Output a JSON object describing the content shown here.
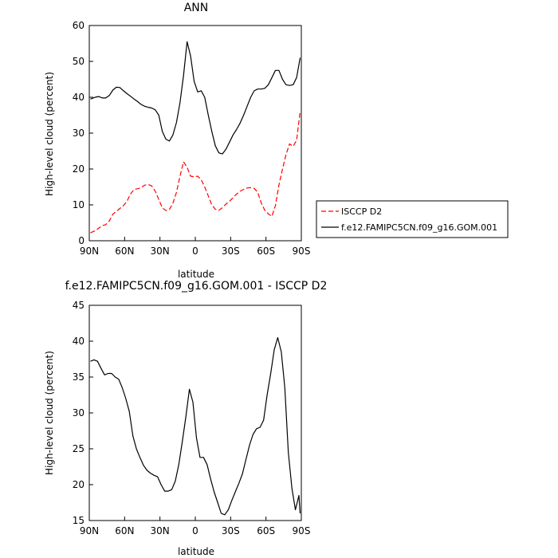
{
  "chart_data": [
    {
      "type": "line",
      "title": "ANN",
      "xlabel": "latitude",
      "ylabel": "High-level cloud (percent)",
      "xlim": [
        90,
        -90
      ],
      "ylim": [
        0,
        60
      ],
      "x_ticks": [
        "90N",
        "60N",
        "30N",
        "0",
        "30S",
        "60S",
        "90S"
      ],
      "y_ticks": [
        "0",
        "10",
        "20",
        "30",
        "40",
        "50",
        "60"
      ],
      "grid": false,
      "legend_position": "right",
      "series": [
        {
          "name": "ISCCP D2",
          "color": "#ff0000",
          "dash": "dashed",
          "x": [
            89,
            85,
            82,
            79,
            76,
            73,
            70,
            67,
            64,
            61,
            58,
            55,
            52,
            49,
            46,
            43,
            40,
            37,
            34,
            31,
            28,
            25,
            22,
            19,
            16,
            13,
            10,
            7,
            4,
            1,
            -2,
            -5,
            -8,
            -11,
            -14,
            -17,
            -20,
            -23,
            -26,
            -29,
            -32,
            -35,
            -38,
            -41,
            -44,
            -47,
            -50,
            -53,
            -56,
            -59,
            -62,
            -65,
            -68,
            -71,
            -74,
            -77,
            -80,
            -83,
            -86,
            -89
          ],
          "y": [
            2.2,
            2.8,
            3.5,
            4.2,
            4.5,
            5.5,
            7.4,
            8.2,
            9.0,
            9.8,
            11.0,
            13.0,
            14.3,
            14.5,
            14.8,
            15.5,
            15.7,
            15.3,
            13.8,
            11.5,
            9.2,
            8.4,
            8.7,
            10.5,
            13.5,
            18.0,
            22.0,
            20.5,
            18.0,
            17.8,
            18.0,
            17.0,
            15.0,
            12.5,
            10.0,
            8.8,
            8.5,
            9.2,
            10.2,
            11.0,
            12.0,
            13.0,
            13.8,
            14.3,
            14.7,
            14.8,
            14.6,
            13.5,
            10.5,
            8.5,
            7.5,
            6.8,
            9.8,
            15.5,
            20.0,
            24.0,
            27.0,
            26.3,
            28.0,
            36.0
          ]
        },
        {
          "name": "f.e12.FAMIPC5CN.f09_g16.GOM.001",
          "color": "#000000",
          "dash": "solid",
          "x": [
            89,
            85,
            82,
            79,
            76,
            73,
            70,
            67,
            64,
            61,
            58,
            55,
            52,
            49,
            46,
            43,
            40,
            37,
            34,
            31,
            28,
            25,
            22,
            19,
            16,
            13,
            10,
            7,
            4,
            1,
            -2,
            -5,
            -8,
            -11,
            -14,
            -17,
            -20,
            -23,
            -26,
            -29,
            -32,
            -35,
            -38,
            -41,
            -44,
            -47,
            -50,
            -53,
            -56,
            -59,
            -62,
            -65,
            -68,
            -71,
            -74,
            -77,
            -80,
            -83,
            -86,
            -89
          ],
          "y": [
            39.5,
            40.0,
            40.2,
            39.8,
            39.8,
            40.5,
            42.0,
            42.8,
            42.7,
            41.8,
            41.0,
            40.3,
            39.5,
            38.8,
            38.0,
            37.5,
            37.2,
            37.0,
            36.5,
            35.0,
            30.5,
            28.3,
            27.8,
            29.5,
            33.0,
            38.5,
            46.0,
            55.5,
            51.5,
            44.5,
            41.5,
            41.8,
            40.0,
            35.0,
            30.5,
            26.5,
            24.5,
            24.2,
            25.5,
            27.5,
            29.5,
            31.0,
            32.8,
            35.0,
            37.5,
            40.0,
            41.8,
            42.3,
            42.3,
            42.5,
            43.5,
            45.5,
            47.5,
            47.5,
            45.0,
            43.5,
            43.3,
            43.5,
            45.5,
            51.0
          ]
        }
      ]
    },
    {
      "type": "line",
      "title": "f.e12.FAMIPC5CN.f09_g16.GOM.001 - ISCCP D2",
      "xlabel": "latitude",
      "ylabel": "High-level cloud (percent)",
      "xlim": [
        90,
        -90
      ],
      "ylim": [
        15,
        45
      ],
      "x_ticks": [
        "90N",
        "60N",
        "30N",
        "0",
        "30S",
        "60S",
        "90S"
      ],
      "y_ticks": [
        "15",
        "20",
        "25",
        "30",
        "35",
        "40",
        "45"
      ],
      "grid": false,
      "legend_position": "none",
      "series": [
        {
          "color": "#000000",
          "dash": "solid",
          "x": [
            89,
            86,
            83,
            80,
            77,
            74,
            71,
            68,
            65,
            62,
            59,
            56,
            53,
            50,
            47,
            44,
            41,
            38,
            35,
            32,
            29,
            26,
            23,
            20,
            17,
            14,
            11,
            8,
            5,
            2,
            -1,
            -4,
            -7,
            -10,
            -13,
            -16,
            -19,
            -22,
            -25,
            -28,
            -31,
            -34,
            -37,
            -40,
            -43,
            -46,
            -49,
            -52,
            -55,
            -58,
            -61,
            -64,
            -67,
            -70,
            -73,
            -76,
            -79,
            -82,
            -85,
            -88,
            -89
          ],
          "y": [
            37.2,
            37.4,
            37.2,
            36.2,
            35.3,
            35.5,
            35.5,
            35.0,
            34.7,
            33.5,
            32.0,
            30.2,
            26.8,
            25.0,
            23.8,
            22.7,
            22.0,
            21.6,
            21.3,
            21.1,
            20.0,
            19.1,
            19.1,
            19.3,
            20.5,
            22.8,
            26.0,
            29.5,
            33.3,
            31.5,
            26.5,
            23.8,
            23.8,
            22.8,
            20.8,
            19.0,
            17.5,
            16.0,
            15.8,
            16.5,
            17.8,
            19.0,
            20.2,
            21.5,
            23.5,
            25.5,
            27.0,
            27.8,
            28.0,
            29.0,
            32.5,
            35.5,
            38.8,
            40.5,
            38.5,
            33.5,
            24.5,
            19.5,
            16.5,
            18.5,
            16.0
          ]
        }
      ]
    }
  ]
}
